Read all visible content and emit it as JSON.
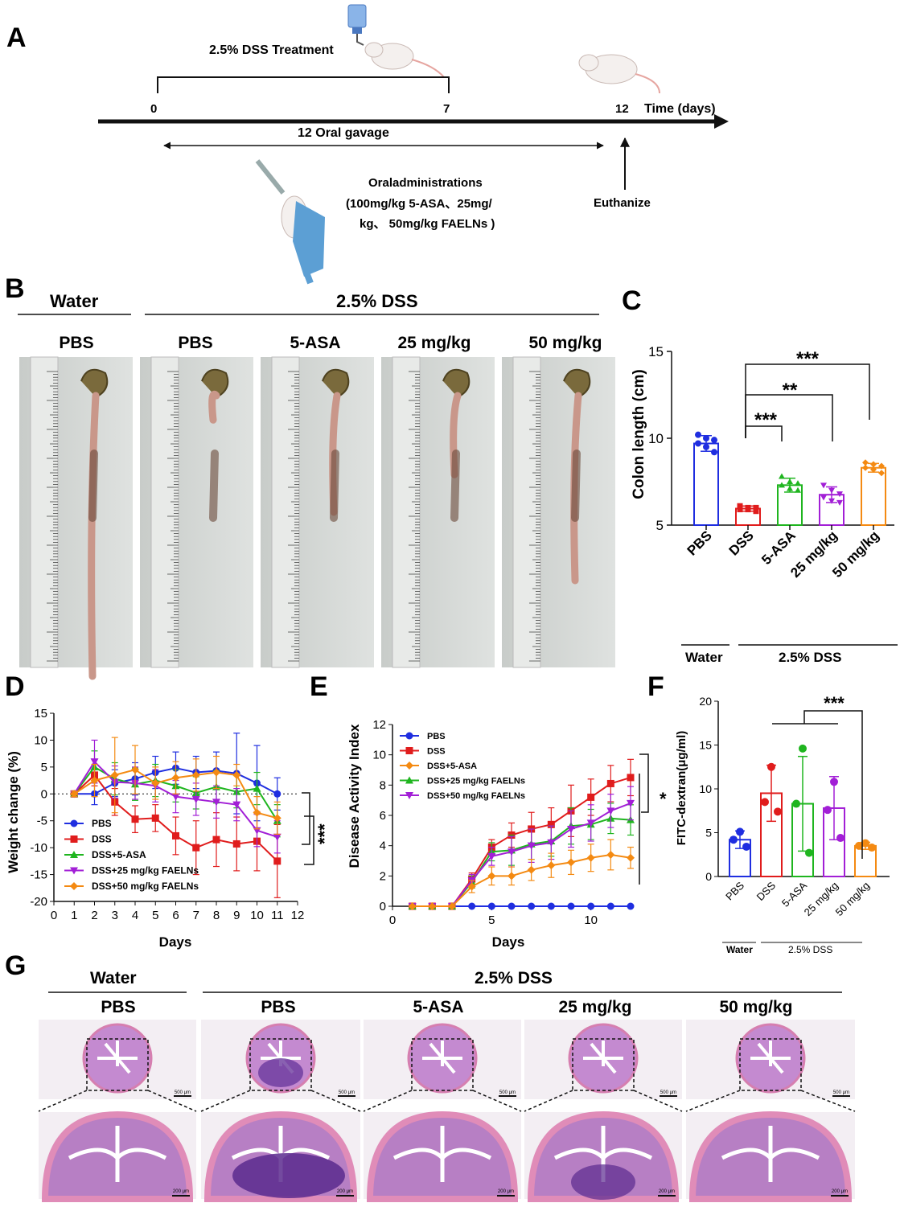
{
  "panels": {
    "A": "A",
    "B": "B",
    "C": "C",
    "D": "D",
    "E": "E",
    "F": "F",
    "G": "G"
  },
  "panel_a": {
    "treatment": "2.5% DSS Treatment",
    "tick0": "0",
    "tick7": "7",
    "tick12": "12",
    "time_label": "Time (days)",
    "gavage": "12  Oral gavage",
    "oral_line1": "Oraladministrations",
    "oral_line2": "(100mg/kg 5-ASA、25mg/",
    "oral_line3": "kg、 50mg/kg FAELNs )",
    "euthanize": "Euthanize"
  },
  "panel_b": {
    "water": "Water",
    "dss": "2.5% DSS",
    "groups": [
      "PBS",
      "PBS",
      "5-ASA",
      "25 mg/kg",
      "50 mg/kg"
    ]
  },
  "panel_c": {
    "ylabel": "Colon length (cm)",
    "yticks": [
      "5",
      "10",
      "15"
    ],
    "categories": [
      "PBS",
      "DSS",
      "5-ASA",
      "25 mg/kg",
      "50 mg/kg"
    ],
    "sig": [
      "***",
      "**",
      "***"
    ],
    "water": "Water",
    "dss": "2.5% DSS",
    "colors": [
      "#1f2ee0",
      "#e01c1c",
      "#1fb51f",
      "#a21fd6",
      "#f48a12"
    ]
  },
  "panel_d": {
    "ylabel": "Weight change (%)",
    "xlabel": "Days",
    "yticks": [
      "-20",
      "-15",
      "-10",
      "-5",
      "0",
      "5",
      "10",
      "15"
    ],
    "xticks": [
      "0",
      "1",
      "2",
      "3",
      "4",
      "5",
      "6",
      "7",
      "8",
      "9",
      "10",
      "11",
      "12"
    ],
    "legend": [
      "PBS",
      "DSS",
      "DSS+5-ASA",
      "DSS+25 mg/kg FAELNs",
      "DSS+50 mg/kg FAELNs"
    ],
    "sig": "***"
  },
  "panel_e": {
    "ylabel": "Disease Activity Index",
    "xlabel": "Days",
    "yticks": [
      "0",
      "2",
      "4",
      "6",
      "8",
      "10",
      "12"
    ],
    "xticks": [
      "0",
      "5",
      "10"
    ],
    "legend": [
      "PBS",
      "DSS",
      "DSS+5-ASA",
      "DSS+25 mg/kg FAELNs",
      "DSS+50 mg/kg FAELNs"
    ],
    "sig": "*"
  },
  "panel_f": {
    "ylabel": "FITC-dextran(μg/ml)",
    "yticks": [
      "0",
      "5",
      "10",
      "15",
      "20"
    ],
    "categories": [
      "PBS",
      "DSS",
      "5-ASA",
      "25 mg/kg",
      "50 mg/kg"
    ],
    "sig": "***",
    "water": "Water",
    "dss": "2.5% DSS"
  },
  "panel_g": {
    "water": "Water",
    "dss": "2.5% DSS",
    "groups": [
      "PBS",
      "PBS",
      "5-ASA",
      "25 mg/kg",
      "50 mg/kg"
    ],
    "scale_top": "500 μm",
    "scale_bottom": "200 μm"
  },
  "chart_data": [
    {
      "type": "bar",
      "panel": "C",
      "categories": [
        "PBS",
        "DSS",
        "5-ASA",
        "25 mg/kg",
        "50 mg/kg"
      ],
      "values": [
        9.7,
        5.95,
        7.3,
        6.75,
        8.3
      ],
      "errors": [
        0.45,
        0.15,
        0.4,
        0.45,
        0.25
      ],
      "points": [
        [
          10.2,
          10.0,
          9.9,
          9.7,
          9.5,
          9.2
        ],
        [
          6.1,
          6.0,
          6.0,
          5.9,
          5.9,
          5.8
        ],
        [
          7.8,
          7.5,
          7.4,
          7.3,
          7.1,
          7.0
        ],
        [
          7.3,
          7.0,
          6.8,
          6.6,
          6.4,
          6.3
        ],
        [
          8.6,
          8.5,
          8.4,
          8.3,
          8.2,
          8.0
        ]
      ],
      "ylabel": "Colon length (cm)",
      "ylim": [
        5,
        15
      ]
    },
    {
      "type": "line",
      "panel": "D",
      "x": [
        1,
        2,
        3,
        4,
        5,
        6,
        7,
        8,
        9,
        10,
        11
      ],
      "series": [
        {
          "name": "PBS",
          "values": [
            0,
            0,
            2,
            2.8,
            4,
            4.8,
            4,
            4.3,
            3.8,
            2,
            0
          ],
          "errors": [
            0.5,
            2,
            2.5,
            3,
            3,
            3,
            3,
            3.5,
            7.5,
            7,
            3
          ]
        },
        {
          "name": "DSS",
          "values": [
            0,
            3.5,
            -1.5,
            -4.7,
            -4.5,
            -7.8,
            -10,
            -8.5,
            -9.3,
            -8.8,
            -12.5
          ],
          "errors": [
            0.5,
            2,
            2.5,
            2.5,
            2.5,
            3.5,
            5,
            5,
            5,
            5.5,
            6.8
          ]
        },
        {
          "name": "DSS+5-ASA",
          "values": [
            0,
            5,
            2.8,
            1.8,
            2.5,
            1.5,
            0.2,
            1.3,
            0.4,
            1,
            -5
          ],
          "errors": [
            0.5,
            3,
            3,
            3,
            3,
            3,
            3,
            3,
            3,
            3,
            3
          ]
        },
        {
          "name": "DSS+25 mg/kg FAELNs",
          "values": [
            0,
            6,
            2.2,
            2,
            1.5,
            -0.5,
            -1,
            -1.5,
            -2,
            -6.8,
            -8
          ],
          "errors": [
            0.5,
            4,
            3,
            3,
            3,
            3,
            3,
            3,
            3,
            3,
            3
          ]
        },
        {
          "name": "DSS+50 mg/kg FAELNs",
          "values": [
            0,
            2.5,
            3.5,
            4.5,
            2,
            3,
            3.5,
            4,
            3.5,
            -3.5,
            -4.5
          ],
          "errors": [
            0.5,
            3,
            7,
            4.5,
            3,
            3,
            3,
            3,
            2,
            3,
            3
          ]
        }
      ],
      "xlabel": "Days",
      "ylabel": "Weight change (%)",
      "xlim": [
        0,
        12
      ],
      "ylim": [
        -20,
        15
      ]
    },
    {
      "type": "line",
      "panel": "E",
      "x": [
        1,
        2,
        3,
        4,
        5,
        6,
        7,
        8,
        9,
        10,
        11,
        12
      ],
      "series": [
        {
          "name": "PBS",
          "values": [
            0,
            0,
            0,
            0,
            0,
            0,
            0,
            0,
            0,
            0,
            0,
            0
          ],
          "errors": [
            0,
            0,
            0,
            0,
            0,
            0,
            0,
            0,
            0,
            0,
            0,
            0
          ]
        },
        {
          "name": "DSS",
          "values": [
            0,
            0,
            0,
            1.8,
            3.9,
            4.7,
            5.1,
            5.4,
            6.3,
            7.2,
            8.1,
            8.5
          ],
          "errors": [
            0,
            0,
            0,
            0.4,
            0.5,
            0.8,
            1.1,
            1.1,
            1.7,
            1.2,
            1.2,
            1.2
          ]
        },
        {
          "name": "DSS+5-ASA",
          "values": [
            0,
            0,
            0,
            1.6,
            3.6,
            3.7,
            4.1,
            4.3,
            5.3,
            5.4,
            5.8,
            5.7
          ],
          "errors": [
            0,
            0,
            0,
            0.4,
            0.6,
            1,
            1,
            1,
            1.2,
            1,
            1,
            1
          ]
        },
        {
          "name": "DSS+25 mg/kg FAELNs",
          "values": [
            0,
            0,
            0,
            1.7,
            3.3,
            3.6,
            4.0,
            4.2,
            5.1,
            5.5,
            6.3,
            6.8
          ],
          "errors": [
            0,
            0,
            0,
            0.4,
            0.6,
            1,
            1.1,
            1.1,
            1.2,
            1.2,
            1.1,
            1.1
          ]
        },
        {
          "name": "DSS+50 mg/kg FAELNs",
          "values": [
            0,
            0,
            0,
            1.3,
            2.0,
            2.0,
            2.4,
            2.7,
            2.9,
            3.2,
            3.4,
            3.2
          ],
          "errors": [
            0,
            0,
            0,
            0.4,
            0.6,
            0.6,
            0.7,
            0.8,
            0.8,
            0.9,
            1,
            0.7
          ]
        }
      ],
      "xlabel": "Days",
      "ylabel": "Disease Activity Index",
      "xlim": [
        0,
        12
      ],
      "ylim": [
        0,
        12
      ]
    },
    {
      "type": "bar",
      "panel": "F",
      "categories": [
        "PBS",
        "DSS",
        "5-ASA",
        "25 mg/kg",
        "50 mg/kg"
      ],
      "values": [
        4.2,
        9.5,
        8.3,
        7.8,
        3.5
      ],
      "errors": [
        1,
        3.2,
        5.4,
        3.6,
        0.4
      ],
      "points": [
        [
          5.1,
          4.2,
          3.4
        ],
        [
          12.5,
          8.5,
          7.4
        ],
        [
          14.6,
          8.3,
          2.7
        ],
        [
          10.8,
          7.6,
          4.4
        ],
        [
          3.8,
          3.5,
          3.3
        ]
      ],
      "ylabel": "FITC-dextran(μg/ml)",
      "ylim": [
        0,
        20
      ]
    }
  ]
}
